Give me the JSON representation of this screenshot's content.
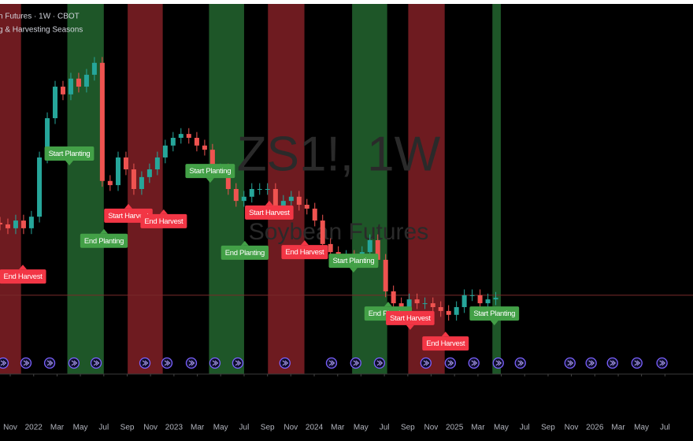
{
  "chart_data": {
    "type": "candlestick",
    "title": "n Futures · 1W · CBOT",
    "subtitle": "g & Harvesting Seasons",
    "watermark": "ZS1!, 1W",
    "watermark_subtitle": "Soybean Futures",
    "up_color": "#26a69a",
    "down_color": "#ef5350",
    "harvest_color": "#6e1b20",
    "planting_color": "#1e5628",
    "xlim": [
      2021.76,
      2026.7
    ],
    "ylim": [
      800,
      1950
    ],
    "xticks": [
      {
        "value": 2021.833,
        "label": "Nov"
      },
      2022,
      {
        "value": 2022.167,
        "label": "Mar"
      },
      {
        "value": 2022.333,
        "label": "May"
      },
      {
        "value": 2022.5,
        "label": "Jul"
      },
      {
        "value": 2022.667,
        "label": "Sep"
      },
      {
        "value": 2022.833,
        "label": "Nov"
      },
      2023,
      {
        "value": 2023.167,
        "label": "Mar"
      },
      {
        "value": 2023.333,
        "label": "May"
      },
      {
        "value": 2023.5,
        "label": "Jul"
      },
      {
        "value": 2023.667,
        "label": "Sep"
      },
      {
        "value": 2023.833,
        "label": "Nov"
      },
      2024,
      {
        "value": 2024.167,
        "label": "Mar"
      },
      {
        "value": 2024.333,
        "label": "May"
      },
      {
        "value": 2024.5,
        "label": "Jul"
      },
      {
        "value": 2024.667,
        "label": "Sep"
      },
      {
        "value": 2024.833,
        "label": "Nov"
      },
      2025,
      {
        "value": 2025.167,
        "label": "Mar"
      },
      {
        "value": 2025.333,
        "label": "May"
      },
      {
        "value": 2025.5,
        "label": "Jul"
      },
      {
        "value": 2025.667,
        "label": "Sep"
      },
      {
        "value": 2025.833,
        "label": "Nov"
      },
      2026,
      {
        "value": 2026.167,
        "label": "Mar"
      },
      {
        "value": 2026.333,
        "label": "May"
      },
      {
        "value": 2026.5,
        "label": "Jul"
      }
    ],
    "harvest_bands": [
      [
        2021.76,
        2021.91
      ],
      [
        2022.67,
        2022.92
      ],
      [
        2023.67,
        2023.93
      ],
      [
        2024.67,
        2024.93
      ]
    ],
    "planting_bands": [
      [
        2022.24,
        2022.5
      ],
      [
        2023.25,
        2023.5
      ],
      [
        2024.27,
        2024.52
      ],
      [
        2025.27,
        2025.33
      ]
    ],
    "last_price": 1045,
    "x": [
      2021.76,
      2021.816,
      2021.872,
      2021.928,
      2021.984,
      2022.041,
      2022.097,
      2022.153,
      2022.209,
      2022.265,
      2022.321,
      2022.377,
      2022.433,
      2022.489,
      2022.545,
      2022.602,
      2022.658,
      2022.714,
      2022.77,
      2022.826,
      2022.882,
      2022.938,
      2022.994,
      2023.05,
      2023.106,
      2023.163,
      2023.219,
      2023.275,
      2023.331,
      2023.387,
      2023.443,
      2023.499,
      2023.555,
      2023.611,
      2023.667,
      2023.724,
      2023.78,
      2023.836,
      2023.892,
      2023.948,
      2024.004,
      2024.06,
      2024.116,
      2024.172,
      2024.228,
      2024.285,
      2024.341,
      2024.397,
      2024.453,
      2024.509,
      2024.565,
      2024.621,
      2024.677,
      2024.733,
      2024.789,
      2024.846,
      2024.902,
      2024.958,
      2025.014,
      2025.07,
      2025.126,
      2025.182,
      2025.238,
      2025.294
    ],
    "open": [
      1270,
      1265,
      1253,
      1277,
      1253,
      1289,
      1473,
      1595,
      1693,
      1669,
      1718,
      1693,
      1730,
      1767,
      1400,
      1387,
      1473,
      1436,
      1375,
      1412,
      1436,
      1473,
      1510,
      1534,
      1546,
      1534,
      1510,
      1497,
      1436,
      1436,
      1375,
      1338,
      1351,
      1375,
      1375,
      1375,
      1302,
      1338,
      1351,
      1326,
      1314,
      1277,
      1204,
      1179,
      1167,
      1167,
      1155,
      1179,
      1216,
      1155,
      1057,
      1020,
      1008,
      1032,
      1020,
      1020,
      1008,
      996,
      984,
      1008,
      1045,
      1045,
      1020,
      1032
    ],
    "high": [
      1288,
      1283,
      1295,
      1295,
      1307,
      1491,
      1613,
      1711,
      1711,
      1736,
      1736,
      1748,
      1785,
      1785,
      1418,
      1491,
      1491,
      1454,
      1430,
      1454,
      1491,
      1528,
      1552,
      1564,
      1564,
      1552,
      1528,
      1515,
      1454,
      1454,
      1393,
      1369,
      1393,
      1393,
      1393,
      1393,
      1356,
      1369,
      1369,
      1344,
      1332,
      1295,
      1222,
      1197,
      1185,
      1185,
      1197,
      1234,
      1234,
      1173,
      1075,
      1038,
      1050,
      1050,
      1038,
      1038,
      1026,
      1014,
      1026,
      1063,
      1063,
      1063,
      1050,
      1055
    ],
    "low": [
      1247,
      1235,
      1235,
      1235,
      1235,
      1271,
      1455,
      1577,
      1651,
      1651,
      1675,
      1675,
      1712,
      1382,
      1369,
      1369,
      1418,
      1357,
      1357,
      1394,
      1418,
      1455,
      1492,
      1516,
      1516,
      1492,
      1479,
      1418,
      1418,
      1357,
      1320,
      1320,
      1333,
      1357,
      1357,
      1284,
      1284,
      1320,
      1308,
      1296,
      1259,
      1186,
      1161,
      1149,
      1149,
      1137,
      1137,
      1161,
      1137,
      1039,
      1002,
      990,
      990,
      1002,
      1002,
      990,
      978,
      966,
      966,
      990,
      1027,
      1002,
      1002,
      1014
    ],
    "close": [
      1265,
      1253,
      1277,
      1253,
      1289,
      1473,
      1595,
      1693,
      1669,
      1718,
      1693,
      1730,
      1767,
      1400,
      1387,
      1473,
      1436,
      1375,
      1412,
      1436,
      1473,
      1510,
      1534,
      1546,
      1534,
      1510,
      1497,
      1436,
      1436,
      1375,
      1338,
      1351,
      1375,
      1375,
      1375,
      1302,
      1338,
      1351,
      1326,
      1314,
      1277,
      1204,
      1179,
      1167,
      1167,
      1155,
      1179,
      1216,
      1155,
      1057,
      1020,
      1008,
      1032,
      1020,
      1020,
      1008,
      996,
      984,
      1008,
      1045,
      1045,
      1020,
      1032,
      1037
    ],
    "labels": [
      {
        "text": "End Harvest",
        "x": 2021.923,
        "y": 1103,
        "color": "#f23645",
        "pointer": "up"
      },
      {
        "text": "Start Planting",
        "x": 2022.254,
        "y": 1485,
        "color": "#43a047",
        "pointer": "down"
      },
      {
        "text": "End Planting",
        "x": 2022.501,
        "y": 1214,
        "color": "#43a047",
        "pointer": "up"
      },
      {
        "text": "Start Harvest",
        "x": 2022.675,
        "y": 1292,
        "color": "#f23645",
        "pointer": "up"
      },
      {
        "text": "End Harvest",
        "x": 2022.927,
        "y": 1275,
        "color": "#f23645",
        "pointer": "up"
      },
      {
        "text": "Start Planting",
        "x": 2023.258,
        "y": 1431,
        "color": "#43a047",
        "pointer": "down"
      },
      {
        "text": "End Planting",
        "x": 2023.505,
        "y": 1177,
        "color": "#43a047",
        "pointer": "up"
      },
      {
        "text": "Start Harvest",
        "x": 2023.679,
        "y": 1302,
        "color": "#f23645",
        "pointer": "up"
      },
      {
        "text": "End Harvest",
        "x": 2023.932,
        "y": 1179,
        "color": "#f23645",
        "pointer": "up"
      },
      {
        "text": "Start Planting",
        "x": 2024.28,
        "y": 1152,
        "color": "#43a047",
        "pointer": "down"
      },
      {
        "text": "End Planting",
        "x": 2024.527,
        "y": 988,
        "color": "#43a047",
        "pointer": "up"
      },
      {
        "text": "Start Harvest",
        "x": 2024.684,
        "y": 974,
        "color": "#f23645",
        "pointer": "down"
      },
      {
        "text": "End Harvest",
        "x": 2024.936,
        "y": 895,
        "color": "#f23645",
        "pointer": "up"
      },
      {
        "text": "Start Planting",
        "x": 2025.284,
        "y": 988,
        "color": "#43a047",
        "pointer": "down"
      }
    ],
    "events": [
      2021.782,
      2021.945,
      2022.114,
      2022.287,
      2022.445,
      2022.793,
      2022.95,
      2023.124,
      2023.292,
      2023.455,
      2023.791,
      2024.123,
      2024.296,
      2024.465,
      2024.796,
      2024.97,
      2025.138,
      2025.312,
      2025.469,
      2025.823,
      2025.974,
      2026.126,
      2026.3,
      2026.479
    ]
  }
}
